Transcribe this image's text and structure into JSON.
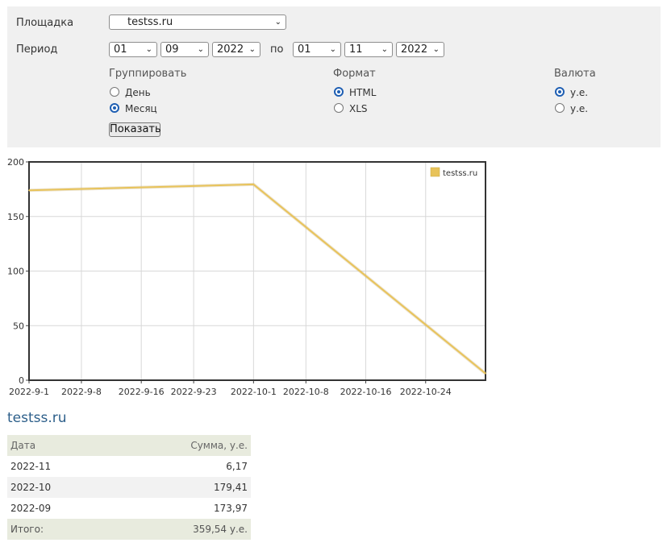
{
  "filter": {
    "site_label": "Площадка",
    "site_value": "testss.ru",
    "period_label": "Период",
    "from_day": "01",
    "from_month": "09",
    "from_year": "2022",
    "to_word": "по",
    "to_day": "01",
    "to_month": "11",
    "to_year": "2022",
    "group_title": "Группировать",
    "group_day": "День",
    "group_month": "Месяц",
    "format_title": "Формат",
    "format_html": "HTML",
    "format_xls": "XLS",
    "currency_title": "Валюта",
    "currency_1": "у.е.",
    "currency_2": "у.е.",
    "show_button": "Показать"
  },
  "chart_data": {
    "type": "line",
    "x": [
      "2022-9-1",
      "2022-10-1",
      "2022-11-1"
    ],
    "series": [
      {
        "name": "testss.ru",
        "values": [
          173.97,
          179.41,
          6.17
        ],
        "color": "#e8c35a"
      }
    ],
    "xticks": [
      "2022-9-1",
      "2022-9-8",
      "2022-9-16",
      "2022-9-23",
      "2022-10-1",
      "2022-10-8",
      "2022-10-16",
      "2022-10-24"
    ],
    "yticks": [
      "0",
      "50",
      "100",
      "150",
      "200"
    ],
    "ylim": [
      0,
      200
    ],
    "grid": true,
    "legend": "top-right"
  },
  "table": {
    "title": "testss.ru",
    "col_date": "Дата",
    "col_sum": "Сумма, у.е.",
    "rows": [
      {
        "date": "2022-11",
        "sum": "6,17"
      },
      {
        "date": "2022-10",
        "sum": "179,41"
      },
      {
        "date": "2022-09",
        "sum": "173,97"
      }
    ],
    "total_label": "Итого:",
    "total_value": "359,54 у.е."
  }
}
